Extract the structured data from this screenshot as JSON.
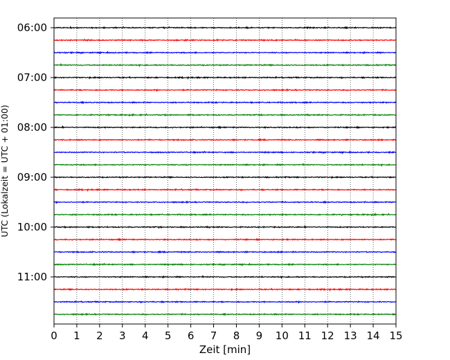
{
  "chart_data": {
    "type": "line",
    "title": "",
    "xlabel": "Zeit  [min]",
    "ylabel": "UTC (Lokalzeit = UTC + 01:00)",
    "xlim": [
      0,
      15
    ],
    "x_ticks": [
      "0",
      "1",
      "2",
      "3",
      "4",
      "5",
      "6",
      "7",
      "8",
      "9",
      "10",
      "11",
      "12",
      "13",
      "14",
      "15"
    ],
    "y_ticks": [
      "06:00",
      "07:00",
      "08:00",
      "09:00",
      "10:00",
      "11:00"
    ],
    "grid": "vertical dotted at each minute",
    "trace_interval_minutes": 15,
    "first_trace": "06:00",
    "trace_count": 24,
    "trace_colors": [
      "#000000",
      "#ff0000",
      "#0000ff",
      "#008000"
    ]
  }
}
